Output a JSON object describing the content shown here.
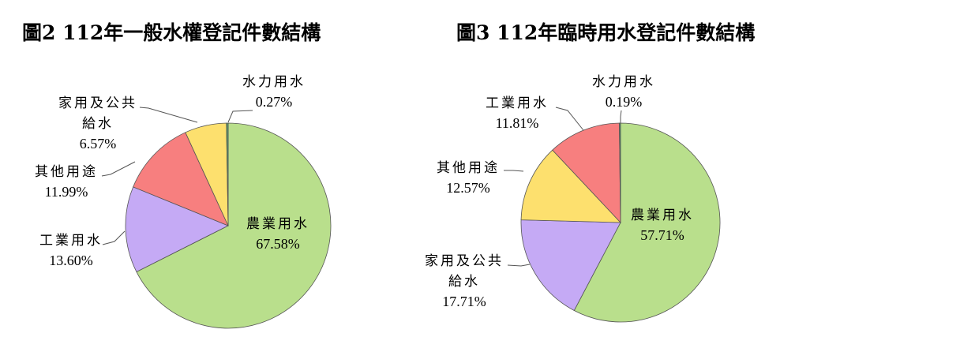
{
  "chart_data": [
    {
      "type": "pie",
      "title": "圖2 112年一般水權登記件數結構",
      "categories": [
        "農業用水",
        "工業用水",
        "其他用途",
        "家用及公共給水",
        "水力用水"
      ],
      "values": [
        67.58,
        13.6,
        11.99,
        6.57,
        0.27
      ],
      "labels": [
        {
          "lines": [
            "農業用水",
            "67.58%"
          ]
        },
        {
          "lines": [
            "工業用水",
            "13.60%"
          ]
        },
        {
          "lines": [
            "其他用途",
            "11.99%"
          ]
        },
        {
          "lines": [
            "家用及公共",
            "給水",
            "6.57%"
          ]
        },
        {
          "lines": [
            "水力用水",
            "0.27%"
          ]
        }
      ],
      "colors": [
        "#b9df8c",
        "#c5aaf5",
        "#f77f7f",
        "#fde06e",
        "#5a9e6a"
      ]
    },
    {
      "type": "pie",
      "title": "圖3 112年臨時用水登記件數結構",
      "categories": [
        "農業用水",
        "家用及公共給水",
        "其他用途",
        "工業用水",
        "水力用水"
      ],
      "values": [
        57.71,
        17.71,
        12.57,
        11.81,
        0.19
      ],
      "labels": [
        {
          "lines": [
            "農業用水",
            "57.71%"
          ]
        },
        {
          "lines": [
            "家用及公共",
            "給水",
            "17.71%"
          ]
        },
        {
          "lines": [
            "其他用途",
            "12.57%"
          ]
        },
        {
          "lines": [
            "工業用水",
            "11.81%"
          ]
        },
        {
          "lines": [
            "水力用水",
            "0.19%"
          ]
        }
      ],
      "colors": [
        "#b9df8c",
        "#c5aaf5",
        "#fde06e",
        "#f77f7f",
        "#5a9e6a"
      ]
    }
  ]
}
